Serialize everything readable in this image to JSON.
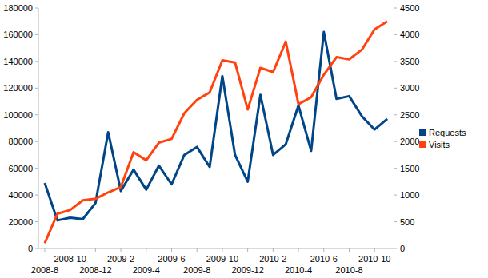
{
  "chart_data": {
    "type": "line",
    "categories": [
      "2008-8",
      null,
      "2008-10",
      null,
      "2008-12",
      null,
      "2009-2",
      null,
      "2009-4",
      null,
      "2009-6",
      null,
      "2009-8",
      null,
      "2009-10",
      null,
      "2009-12",
      null,
      "2010-2",
      null,
      "2010-4",
      null,
      "2010-6",
      null,
      "2010-8",
      null,
      "2010-10",
      null
    ],
    "series": [
      {
        "name": "Requests",
        "color": "#004586",
        "values": [
          49000,
          21000,
          23000,
          22000,
          34000,
          87000,
          43000,
          59000,
          44000,
          62000,
          48000,
          70000,
          76000,
          61000,
          129000,
          70000,
          50000,
          115000,
          70000,
          78000,
          107000,
          73000,
          162000,
          112000,
          114000,
          99000,
          89000,
          97000
        ]
      },
      {
        "name": "Visits",
        "color": "#ff420e",
        "axis": "y2",
        "values": [
          100,
          650,
          720,
          900,
          930,
          1050,
          1150,
          1800,
          1650,
          1980,
          2050,
          2530,
          2780,
          2920,
          3520,
          3480,
          2600,
          3380,
          3300,
          3870,
          2700,
          2830,
          3250,
          3580,
          3540,
          3720,
          4100,
          4250
        ]
      }
    ],
    "ylim": [
      0,
      180000
    ],
    "yticks": [
      0,
      20000,
      40000,
      60000,
      80000,
      100000,
      120000,
      140000,
      160000,
      180000
    ],
    "y2lim": [
      0,
      4500
    ],
    "y2ticks": [
      0,
      500,
      1000,
      1500,
      2000,
      2500,
      3000,
      3500,
      4000,
      4500
    ],
    "grid": false,
    "legend": "right"
  }
}
